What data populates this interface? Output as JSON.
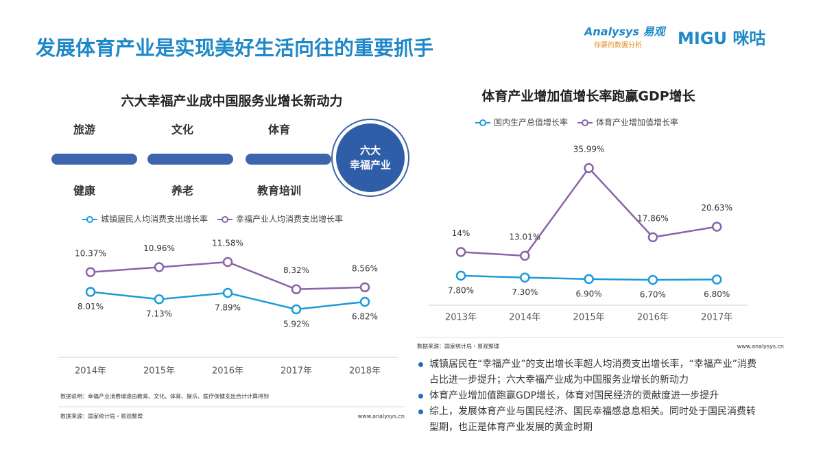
{
  "header": {
    "title": "发展体育产业是实现美好生活向往的重要抓手",
    "logo_analysys": "Analysys 易观",
    "logo_slogan": "你要的数据分析",
    "logo_migu": "MIGU 咪咕"
  },
  "diagram": {
    "title": "六大幸福产业成中国服务业增长新动力",
    "top": [
      "旅游",
      "文化",
      "体育"
    ],
    "bottom": [
      "健康",
      "养老",
      "教育培训"
    ],
    "center": [
      "六大",
      "幸福产业"
    ]
  },
  "chart_data": [
    {
      "type": "line",
      "categories": [
        "2014年",
        "2015年",
        "2016年",
        "2017年",
        "2018年"
      ],
      "series": [
        {
          "name": "城镇居民人均消费支出增长率",
          "color": "#1a9bd7",
          "values": [
            8.01,
            7.13,
            7.89,
            5.92,
            6.82
          ],
          "value_labels": [
            "8.01%",
            "7.13%",
            "7.89%",
            "5.92%",
            "6.82%"
          ]
        },
        {
          "name": "幸福产业人均消费支出增长率",
          "color": "#8a63a8",
          "values": [
            10.37,
            10.96,
            11.58,
            8.32,
            8.56
          ],
          "value_labels": [
            "10.37%",
            "10.96%",
            "11.58%",
            "8.32%",
            "8.56%"
          ]
        }
      ],
      "note": "数据说明：幸福产业消费增速由教育、文化、体育、娱乐、医疗保健支出合计计算得到",
      "source": "数据来源：国家统计局・易观整理",
      "website": "www.analysys.cn"
    },
    {
      "type": "line",
      "title": "体育产业增加值增长率跑赢GDP增长",
      "categories": [
        "2013年",
        "2014年",
        "2015年",
        "2016年",
        "2017年"
      ],
      "series": [
        {
          "name": "国内生产总值增长率",
          "color": "#1a9bd7",
          "values": [
            7.8,
            7.3,
            6.9,
            6.7,
            6.8
          ],
          "value_labels": [
            "7.80%",
            "7.30%",
            "6.90%",
            "6.70%",
            "6.80%"
          ]
        },
        {
          "name": "体育产业增加值增长率",
          "color": "#8a63a8",
          "values": [
            14,
            13.01,
            35.99,
            17.86,
            20.63
          ],
          "value_labels": [
            "14%",
            "13.01%",
            "35.99%",
            "17.86%",
            "20.63%"
          ]
        }
      ],
      "source": "数据来源：国家统计局・易观整理",
      "website": "www.analysys.cn"
    }
  ],
  "bullets": [
    "城镇居民在“幸福产业”的支出增长率超人均消费支出增长率，“幸福产业”消费占比进一步提升；六大幸福产业成为中国服务业增长的新动力",
    "体育产业增加值跑赢GDP增长，体育对国民经济的贡献度进一步提升",
    "综上，发展体育产业与国民经济、国民幸福感息息相关。同时处于国民消费转型期，也正是体育产业发展的黄金时期"
  ]
}
